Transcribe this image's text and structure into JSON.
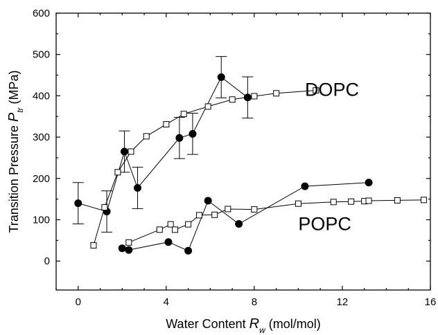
{
  "chart_data": {
    "type": "scatter",
    "xlabel": {
      "main": "Water Content ",
      "var": "R",
      "sub": "w",
      "unit": " (mol/mol)"
    },
    "ylabel": {
      "main": "Transition Pressure ",
      "var": "P",
      "sub": "tr",
      "unit": " (MPa)"
    },
    "xlim": [
      -1,
      16
    ],
    "ylim": [
      -70,
      600
    ],
    "xticks": [
      0,
      4,
      8,
      12,
      16
    ],
    "yticks": [
      0,
      100,
      200,
      300,
      400,
      500,
      600
    ],
    "grid": false,
    "annotations": [
      {
        "text": "DOPC",
        "x": 10.3,
        "y": 400
      },
      {
        "text": "POPC",
        "x": 10.0,
        "y": 75
      }
    ],
    "series": [
      {
        "marker": "filled-circle",
        "points": [
          {
            "x": 0.0,
            "y": 140,
            "err": 50
          },
          {
            "x": 1.3,
            "y": 120,
            "err": 50
          },
          {
            "x": 2.1,
            "y": 265,
            "err": 50
          },
          {
            "x": 2.7,
            "y": 177,
            "err": 50
          },
          {
            "x": 4.6,
            "y": 298,
            "err": 50
          },
          {
            "x": 5.2,
            "y": 308,
            "err": 50
          },
          {
            "x": 6.5,
            "y": 445,
            "err": 50
          },
          {
            "x": 7.7,
            "y": 396,
            "err": 50
          }
        ]
      },
      {
        "marker": "open-square",
        "points": [
          {
            "x": 0.7,
            "y": 38
          },
          {
            "x": 1.2,
            "y": 130
          },
          {
            "x": 1.8,
            "y": 215
          },
          {
            "x": 2.4,
            "y": 265
          },
          {
            "x": 3.1,
            "y": 302
          },
          {
            "x": 4.0,
            "y": 331
          },
          {
            "x": 4.8,
            "y": 356
          },
          {
            "x": 5.9,
            "y": 374
          },
          {
            "x": 7.0,
            "y": 391
          },
          {
            "x": 8.0,
            "y": 399
          },
          {
            "x": 9.0,
            "y": 406
          },
          {
            "x": 10.8,
            "y": 413
          }
        ]
      },
      {
        "marker": "filled-circle",
        "points": [
          {
            "x": 2.0,
            "y": 31
          },
          {
            "x": 2.3,
            "y": 27
          },
          {
            "x": 4.1,
            "y": 46
          },
          {
            "x": 5.0,
            "y": 25
          },
          {
            "x": 5.9,
            "y": 146
          },
          {
            "x": 7.3,
            "y": 90
          },
          {
            "x": 10.3,
            "y": 181
          },
          {
            "x": 13.2,
            "y": 190
          }
        ]
      },
      {
        "marker": "open-square",
        "points": [
          {
            "x": 2.3,
            "y": 45
          },
          {
            "x": 3.7,
            "y": 76
          },
          {
            "x": 4.2,
            "y": 89
          },
          {
            "x": 4.4,
            "y": 76
          },
          {
            "x": 5.0,
            "y": 89
          },
          {
            "x": 5.5,
            "y": 111
          },
          {
            "x": 6.2,
            "y": 112
          },
          {
            "x": 6.8,
            "y": 126
          },
          {
            "x": 8.0,
            "y": 125
          },
          {
            "x": 10.0,
            "y": 139
          },
          {
            "x": 11.6,
            "y": 143
          },
          {
            "x": 12.4,
            "y": 144
          },
          {
            "x": 13.0,
            "y": 145
          },
          {
            "x": 13.2,
            "y": 146
          },
          {
            "x": 14.5,
            "y": 147
          },
          {
            "x": 15.7,
            "y": 148
          }
        ]
      }
    ]
  }
}
